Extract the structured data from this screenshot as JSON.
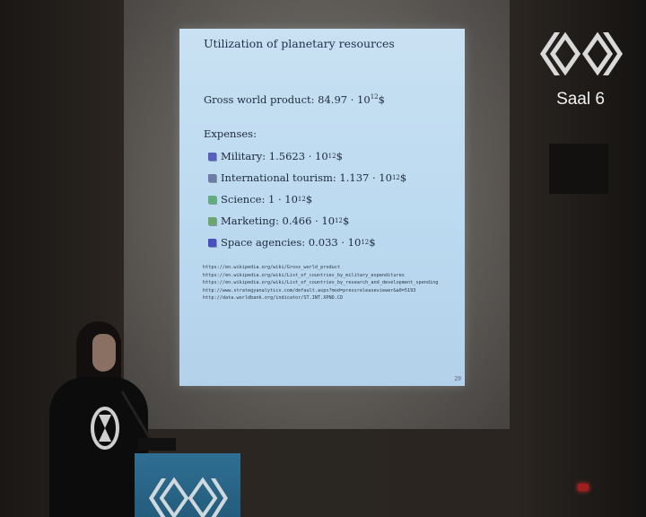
{
  "slide": {
    "title": "Utilization of planetary resources",
    "gwp": {
      "label": "Gross world product: 84.97 · 10",
      "exp": "12",
      "unit": "$"
    },
    "expenses_label": "Expenses:",
    "expenses": [
      {
        "text": "Military: 1.5623 · 10",
        "exp": "12",
        "unit": "$",
        "color": "#5a5fbf"
      },
      {
        "text": "International tourism: 1.137 · 10",
        "exp": "12",
        "unit": "$",
        "color": "#6f7aa8"
      },
      {
        "text": "Science: 1 · 10",
        "exp": "12",
        "unit": "$",
        "color": "#5fae7c"
      },
      {
        "text": "Marketing: 0.466 · 10",
        "exp": "12",
        "unit": "$",
        "color": "#6aa86e"
      },
      {
        "text": "Space agencies: 0.033 · 10",
        "exp": "12",
        "unit": "$",
        "color": "#4a4fc0"
      }
    ],
    "references": [
      "https://en.wikipedia.org/wiki/Gross_world_product",
      "https://en.wikipedia.org/wiki/List_of_countries_by_military_expenditures",
      "https://en.wikipedia.org/wiki/List_of_countries_by_research_and_development_spending",
      "http://www.strategyanalytics.com/default.aspx?mod=pressreleaseviewer&a0=5193",
      "http://data.worldbank.org/indicator/ST.INT.XPND.CD"
    ],
    "page_number": "29"
  },
  "overlay": {
    "room_label": "Saal 6"
  },
  "colors": {
    "slide_bg": "#c0dcf0",
    "podium": "#2a6a8d",
    "logo": "#d8d8d8"
  }
}
